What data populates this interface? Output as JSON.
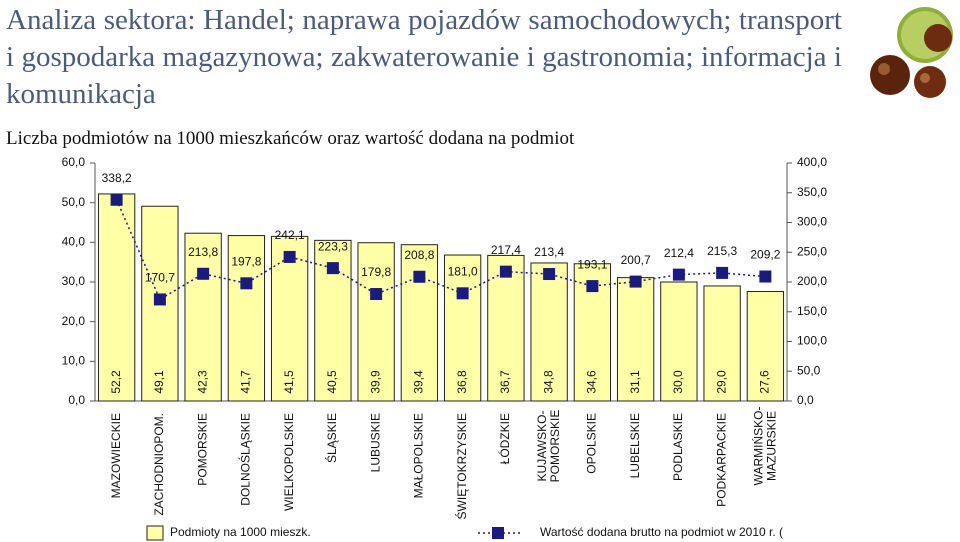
{
  "chart_data": {
    "type": "bar-line",
    "title": "Analiza sektora: Handel; naprawa pojazdów samochodowych; transport i gospodarka magazynowa; zakwaterowanie i gastronomia; informacja i komunikacja",
    "subtitle": "Liczba podmiotów na 1000 mieszkańców oraz wartość dodana na podmiot",
    "categories": [
      "MAZOWIECKIE",
      "ZACHODNIOPOM.",
      "POMORSKIE",
      "DOLNOŚLĄSKIE",
      "WIELKOPOLSKIE",
      "ŚLĄSKIE",
      "LUBUSKIE",
      "MAŁOPOLSKIE",
      "ŚWIĘTOKRZYSKIE",
      "ŁÓDZKIE",
      "KUJAWSKO-POMORSKIE",
      "OPOLSKIE",
      "LUBELSKIE",
      "PODLASKIE",
      "PODKARPACKIE",
      "WARMIŃSKO-MAZURSKIE"
    ],
    "series": [
      {
        "name": "Podmioty na 1000 mieszk.",
        "type": "bar",
        "color": "#ffffa6",
        "values": [
          52.2,
          49.1,
          42.3,
          41.7,
          41.5,
          40.5,
          39.9,
          39.4,
          36.8,
          36.7,
          34.8,
          34.6,
          31.1,
          30.0,
          29.0,
          27.6
        ],
        "value_labels": [
          "52,2",
          "49,1",
          "42,3",
          "41,7",
          "41,5",
          "40,5",
          "39,9",
          "39,4",
          "36,8",
          "36,7",
          "34,8",
          "34,6",
          "31,1",
          "30,0",
          "29,0",
          "27,6"
        ]
      },
      {
        "name": "Wartość dodana brutto na podmiot w 2010 r. (",
        "type": "line",
        "axis": "y2",
        "color": "#1a1a80",
        "values": [
          338.2,
          170.7,
          213.8,
          197.8,
          242.1,
          223.3,
          179.8,
          208.8,
          181.0,
          217.4,
          213.4,
          193.1,
          200.7,
          212.4,
          215.3,
          209.2
        ],
        "value_labels": [
          "338,2",
          "170,7",
          "213,8",
          "197,8",
          "242,1",
          "223,3",
          "179,8",
          "208,8",
          "181,0",
          "217,4",
          "213,4",
          "193,1",
          "200,7",
          "212,4",
          "215,3",
          "209,2"
        ]
      }
    ],
    "ylim": [
      0,
      60
    ],
    "yticks": [
      {
        "value": 0,
        "label": "0,0"
      },
      {
        "value": 10,
        "label": "10,0"
      },
      {
        "value": 20,
        "label": "20,0"
      },
      {
        "value": 30,
        "label": "30,0"
      },
      {
        "value": 40,
        "label": "40,0"
      },
      {
        "value": 50,
        "label": "50,0"
      },
      {
        "value": 60,
        "label": "60,0"
      }
    ],
    "y2lim": [
      0,
      400
    ],
    "y2ticks": [
      {
        "value": 0,
        "label": "0,0"
      },
      {
        "value": 50,
        "label": "50,0"
      },
      {
        "value": 100,
        "label": "100,0"
      },
      {
        "value": 150,
        "label": "150,0"
      },
      {
        "value": 200,
        "label": "200,0"
      },
      {
        "value": 250,
        "label": "250,0"
      },
      {
        "value": 300,
        "label": "300,0"
      },
      {
        "value": 350,
        "label": "350,0"
      },
      {
        "value": 400,
        "label": "400,0"
      }
    ]
  }
}
